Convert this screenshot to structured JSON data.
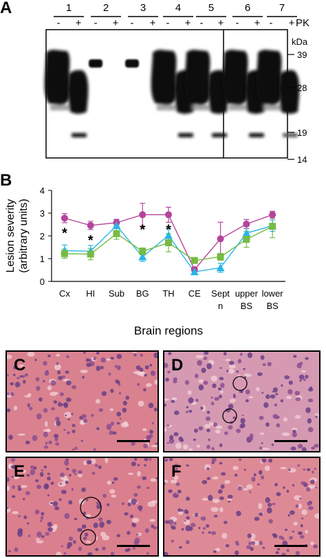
{
  "panelA": {
    "letter": "A",
    "lanes": [
      "1",
      "2",
      "3",
      "4",
      "5",
      "6",
      "7"
    ],
    "pk_marks": [
      "-",
      "+"
    ],
    "pk_label": "PK",
    "unit_label": "kDa",
    "mw_markers": [
      "39",
      "28",
      "19",
      "14"
    ]
  },
  "panelB": {
    "letter": "B"
  },
  "chart_data": {
    "type": "line",
    "ylabel": "Lesion severity\n(arbitrary units)",
    "xlabel": "Brain regions",
    "ylim": [
      0,
      4
    ],
    "yticks": [
      "0",
      "1",
      "2",
      "3",
      "4"
    ],
    "categories": [
      "Cx",
      "HI",
      "Sub",
      "BG",
      "TH",
      "CE",
      "Sept\nn",
      "upper\nBS",
      "lower\nBS"
    ],
    "series": [
      {
        "marker": "circle",
        "color": "#b5449b",
        "values": [
          2.78,
          2.46,
          2.58,
          2.93,
          2.93,
          0.52,
          1.87,
          2.52,
          2.93
        ],
        "err": [
          0.2,
          0.18,
          0.15,
          0.5,
          0.33,
          0.1,
          0.73,
          0.2,
          0.15
        ]
      },
      {
        "marker": "triangle",
        "color": "#29b6e6",
        "values": [
          1.35,
          1.33,
          2.45,
          1.08,
          2.02,
          0.42,
          0.6,
          2.12,
          2.45
        ],
        "err": [
          0.25,
          0.25,
          0.25,
          0.2,
          0.3,
          0.1,
          0.2,
          0.3,
          0.25
        ]
      },
      {
        "marker": "square",
        "color": "#76bb43",
        "values": [
          1.22,
          1.2,
          2.1,
          1.32,
          1.7,
          0.92,
          1.08,
          1.85,
          2.42
        ],
        "err": [
          0.2,
          0.25,
          0.25,
          0.15,
          0.4,
          0.1,
          0.15,
          0.35,
          0.5
        ]
      }
    ],
    "significance": [
      {
        "category": "Cx",
        "mark": "*"
      },
      {
        "category": "HI",
        "mark": "*"
      },
      {
        "category": "BG",
        "mark": "*"
      },
      {
        "category": "TH",
        "mark": "*"
      }
    ]
  },
  "micrographs": [
    {
      "letter": "C",
      "circles": 0,
      "tint": "#d9818f"
    },
    {
      "letter": "D",
      "circles": 2,
      "tint": "#d59ab2"
    },
    {
      "letter": "E",
      "circles": 2,
      "tint": "#da7f8e"
    },
    {
      "letter": "F",
      "circles": 0,
      "tint": "#de8a96"
    }
  ]
}
